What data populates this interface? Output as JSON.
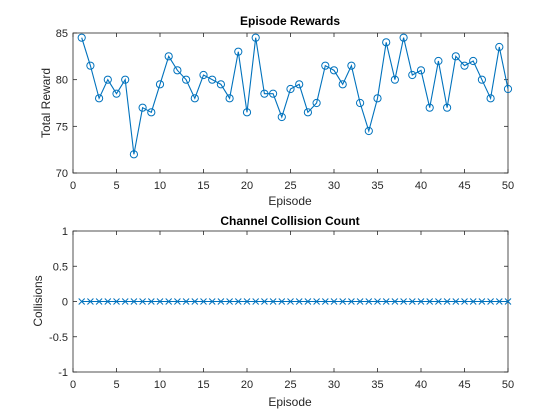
{
  "colors": {
    "series": "#0072BD",
    "axes": "#262626",
    "background": "#ffffff"
  },
  "chart_data": [
    {
      "type": "line",
      "title": "Episode Rewards",
      "xlabel": "Episode",
      "ylabel": "Total Reward",
      "xlim": [
        0,
        50
      ],
      "ylim": [
        70,
        85
      ],
      "xticks": [
        0,
        5,
        10,
        15,
        20,
        25,
        30,
        35,
        40,
        45,
        50
      ],
      "yticks": [
        70,
        75,
        80,
        85
      ],
      "xtick_labels": [
        "0",
        "5",
        "10",
        "15",
        "20",
        "25",
        "30",
        "35",
        "40",
        "45",
        "50"
      ],
      "ytick_labels": [
        "70",
        "75",
        "80",
        "85"
      ],
      "grid": false,
      "marker": "o",
      "series": [
        {
          "x": [
            1,
            2,
            3,
            4,
            5,
            6,
            7,
            8,
            9,
            10,
            11,
            12,
            13,
            14,
            15,
            16,
            17,
            18,
            19,
            20,
            21,
            22,
            23,
            24,
            25,
            26,
            27,
            28,
            29,
            30,
            31,
            32,
            33,
            34,
            35,
            36,
            37,
            38,
            39,
            40,
            41,
            42,
            43,
            44,
            45,
            46,
            47,
            48,
            49,
            50
          ],
          "values": [
            84.5,
            81.5,
            78,
            80,
            78.5,
            80,
            72,
            77,
            76.5,
            79.5,
            82.5,
            81,
            80,
            78,
            80.5,
            80,
            79.5,
            78,
            83,
            76.5,
            84.5,
            78.5,
            78.5,
            76,
            79,
            79.5,
            76.5,
            77.5,
            81.5,
            81,
            79.5,
            81.5,
            77.5,
            74.5,
            78,
            84,
            80,
            84.5,
            80.5,
            81,
            77,
            82,
            77,
            82.5,
            81.5,
            82,
            80,
            78,
            83.5,
            79
          ]
        }
      ]
    },
    {
      "type": "line",
      "title": "Channel Collision Count",
      "xlabel": "Episode",
      "ylabel": "Collisions",
      "xlim": [
        0,
        50
      ],
      "ylim": [
        -1,
        1
      ],
      "xticks": [
        0,
        5,
        10,
        15,
        20,
        25,
        30,
        35,
        40,
        45,
        50
      ],
      "yticks": [
        -1,
        -0.5,
        0,
        0.5,
        1
      ],
      "xtick_labels": [
        "0",
        "5",
        "10",
        "15",
        "20",
        "25",
        "30",
        "35",
        "40",
        "45",
        "50"
      ],
      "ytick_labels": [
        "-1",
        "-0.5",
        "0",
        "0.5",
        "1"
      ],
      "grid": false,
      "marker": "x",
      "series": [
        {
          "x": [
            1,
            2,
            3,
            4,
            5,
            6,
            7,
            8,
            9,
            10,
            11,
            12,
            13,
            14,
            15,
            16,
            17,
            18,
            19,
            20,
            21,
            22,
            23,
            24,
            25,
            26,
            27,
            28,
            29,
            30,
            31,
            32,
            33,
            34,
            35,
            36,
            37,
            38,
            39,
            40,
            41,
            42,
            43,
            44,
            45,
            46,
            47,
            48,
            49,
            50
          ],
          "values": [
            0,
            0,
            0,
            0,
            0,
            0,
            0,
            0,
            0,
            0,
            0,
            0,
            0,
            0,
            0,
            0,
            0,
            0,
            0,
            0,
            0,
            0,
            0,
            0,
            0,
            0,
            0,
            0,
            0,
            0,
            0,
            0,
            0,
            0,
            0,
            0,
            0,
            0,
            0,
            0,
            0,
            0,
            0,
            0,
            0,
            0,
            0,
            0,
            0,
            0
          ]
        }
      ]
    }
  ]
}
